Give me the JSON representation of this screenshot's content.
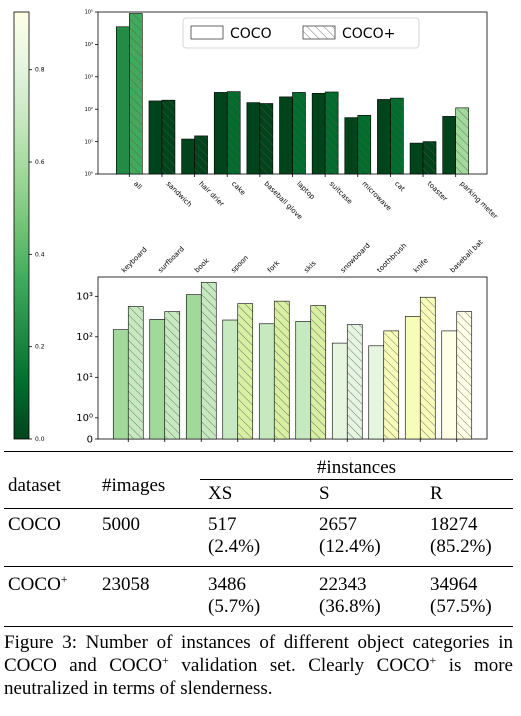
{
  "colorbar": {
    "ticks": [
      "0.0",
      "0.2",
      "0.4",
      "0.6",
      "0.8"
    ],
    "colors": [
      "#00441b",
      "#006d2c",
      "#238b45",
      "#41ab5d",
      "#74c476",
      "#a1d99b",
      "#c7e9c0",
      "#e5f5e0",
      "#ffffe5"
    ]
  },
  "chart_data": [
    {
      "type": "bar",
      "scale": "log",
      "ylim": [
        1,
        100000
      ],
      "yticks": [
        "10⁰",
        "10¹",
        "10²",
        "10³",
        "10⁴",
        "10⁵"
      ],
      "legend": {
        "placement": "top-right",
        "entries": [
          "COCO",
          "COCO+"
        ]
      },
      "categories": [
        "all",
        "sandwich",
        "hair drier",
        "cake",
        "baseball glove",
        "laptop",
        "suitcase",
        "microwave",
        "cat",
        "toaster",
        "parking meter"
      ],
      "series": [
        {
          "name": "COCO",
          "values": [
            35000,
            180,
            12,
            330,
            160,
            240,
            310,
            55,
            200,
            9,
            60
          ],
          "colors": [
            "#238b45",
            "#00441b",
            "#00441b",
            "#00441b",
            "#00441b",
            "#00441b",
            "#00441b",
            "#00441b",
            "#00441b",
            "#00441b",
            "#00441b"
          ]
        },
        {
          "name": "COCO+",
          "values": [
            90000,
            190,
            15,
            350,
            150,
            330,
            340,
            65,
            220,
            10,
            110
          ],
          "colors": [
            "#41ab5d",
            "#00441b",
            "#00441b",
            "#006d2c",
            "#00441b",
            "#006d2c",
            "#006d2c",
            "#006d2c",
            "#006d2c",
            "#00441b",
            "#a1d99b"
          ]
        }
      ]
    },
    {
      "type": "bar",
      "scale": "log",
      "ylim": [
        0.3,
        3000
      ],
      "yticks": [
        "0",
        "10⁰",
        "10¹",
        "10²",
        "10³"
      ],
      "categories": [
        "keyboard",
        "surfboard",
        "book",
        "spoon",
        "fork",
        "skis",
        "snowboard",
        "toothbrush",
        "knife",
        "baseball bat"
      ],
      "series": [
        {
          "name": "COCO",
          "values": [
            150,
            270,
            1100,
            260,
            210,
            240,
            70,
            60,
            320,
            140
          ],
          "colors": [
            "#a1d99b",
            "#a1d99b",
            "#a1d99b",
            "#c7e9c0",
            "#c7e9c0",
            "#c7e9c0",
            "#e5f5e0",
            "#e5f5e0",
            "#f7fcb9",
            "#ffffe5"
          ]
        },
        {
          "name": "COCO+",
          "values": [
            560,
            420,
            2200,
            660,
            760,
            590,
            200,
            140,
            950,
            420
          ],
          "colors": [
            "#c7e9c0",
            "#c7e9c0",
            "#c7e9c0",
            "#d9f0a3",
            "#d9f0a3",
            "#d9f0a3",
            "#e5f5e0",
            "#f7fcb9",
            "#f7fcb9",
            "#ffffe5"
          ]
        }
      ]
    }
  ],
  "table": {
    "h_dataset": "dataset",
    "h_images": "#images",
    "h_instances": "#instances",
    "h_xs": "XS",
    "h_s": "S",
    "h_r": "R",
    "rows": [
      {
        "dataset": "COCO",
        "sup": "",
        "images": "5000",
        "xs": "517",
        "xs_pct": "(2.4%)",
        "s": "2657",
        "s_pct": "(12.4%)",
        "r": "18274",
        "r_pct": "(85.2%)"
      },
      {
        "dataset": "COCO",
        "sup": "+",
        "images": "23058",
        "xs": "3486",
        "xs_pct": "(5.7%)",
        "s": "22343",
        "s_pct": "(36.8%)",
        "r": "34964",
        "r_pct": "(57.5%)"
      }
    ]
  },
  "caption": {
    "part1": "Figure 3: Number of instances of different object categories in COCO and COCO",
    "sup1": "+",
    "part2": " validation set. Clearly COCO",
    "sup2": "+",
    "part3": " is more neutralized in terms of slenderness."
  }
}
